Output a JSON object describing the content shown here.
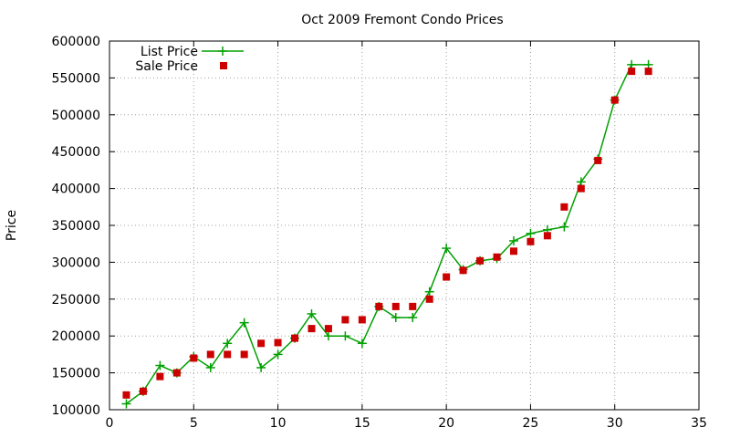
{
  "chart_data": {
    "type": "line",
    "title": "Oct 2009 Fremont Condo Prices",
    "xlabel": "",
    "ylabel": "Price",
    "xlim": [
      0,
      35
    ],
    "ylim": [
      100000,
      600000
    ],
    "xticks": [
      0,
      5,
      10,
      15,
      20,
      25,
      30,
      35
    ],
    "yticks": [
      100000,
      150000,
      200000,
      250000,
      300000,
      350000,
      400000,
      450000,
      500000,
      550000,
      600000
    ],
    "grid": true,
    "legend_position": "top-left",
    "series": [
      {
        "name": "List Price",
        "style": "lines+crosses",
        "color": "#00a000",
        "x": [
          1,
          2,
          3,
          4,
          5,
          6,
          7,
          8,
          9,
          10,
          11,
          12,
          13,
          14,
          15,
          16,
          17,
          18,
          19,
          20,
          21,
          22,
          23,
          24,
          25,
          26,
          27,
          28,
          29,
          30,
          31,
          32
        ],
        "y": [
          108000,
          125000,
          160000,
          150000,
          172000,
          157000,
          190000,
          218000,
          157000,
          175000,
          197000,
          230000,
          200000,
          200000,
          190000,
          240000,
          225000,
          225000,
          260000,
          319000,
          290000,
          302000,
          305000,
          329000,
          339000,
          344000,
          348000,
          409000,
          440000,
          520000,
          568000,
          568000
        ]
      },
      {
        "name": "Sale Price",
        "style": "squares",
        "color": "#cc0000",
        "x": [
          1,
          2,
          3,
          4,
          5,
          6,
          7,
          8,
          9,
          10,
          11,
          12,
          13,
          14,
          15,
          16,
          17,
          18,
          19,
          20,
          21,
          22,
          23,
          24,
          25,
          26,
          27,
          28,
          29,
          30,
          31,
          32
        ],
        "y": [
          120000,
          125000,
          145000,
          150000,
          170000,
          175000,
          175000,
          175000,
          190000,
          191000,
          197000,
          210000,
          210000,
          222000,
          222000,
          240000,
          240000,
          240000,
          250000,
          280000,
          289000,
          302000,
          307000,
          315000,
          328000,
          336000,
          375000,
          400000,
          438000,
          520000,
          559000,
          559000
        ]
      }
    ]
  }
}
